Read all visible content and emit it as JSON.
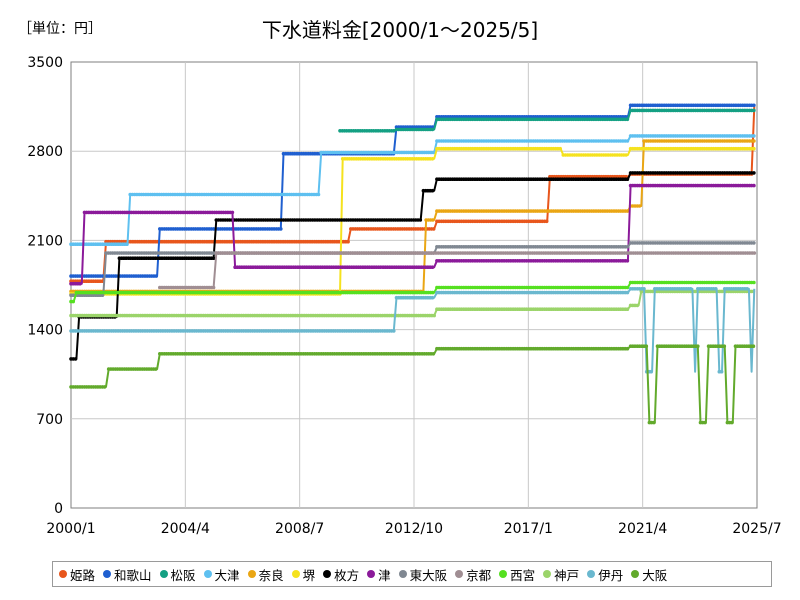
{
  "unit_label": "［単位：円］",
  "chart_data": {
    "type": "line",
    "title": "下水道料金[2000/1～2025/5]",
    "xlabel": "",
    "ylabel": "",
    "xlim": [
      2000.0,
      2025.5
    ],
    "ylim": [
      0,
      3500
    ],
    "yticks": [
      0,
      700,
      1400,
      2100,
      2800,
      3500
    ],
    "xticks": [
      {
        "label": "2000/1",
        "x": 2000.0
      },
      {
        "label": "2004/4",
        "x": 2004.25
      },
      {
        "label": "2008/7",
        "x": 2008.5
      },
      {
        "label": "2012/10",
        "x": 2012.75
      },
      {
        "label": "2017/1",
        "x": 2017.0
      },
      {
        "label": "2021/4",
        "x": 2021.25
      },
      {
        "label": "2025/7",
        "x": 2025.5
      }
    ],
    "grid": true,
    "legend": "bottom",
    "series": [
      {
        "name": "姫路",
        "color": "#e8561c",
        "points": [
          [
            2000.0,
            1780
          ],
          [
            2001.2,
            1780
          ],
          [
            2001.3,
            2090
          ],
          [
            2010.3,
            2090
          ],
          [
            2010.4,
            2190
          ],
          [
            2013.5,
            2190
          ],
          [
            2013.6,
            2250
          ],
          [
            2017.7,
            2250
          ],
          [
            2017.8,
            2600
          ],
          [
            2020.7,
            2600
          ],
          [
            2020.8,
            2620
          ],
          [
            2025.3,
            2620
          ],
          [
            2025.4,
            3150
          ]
        ]
      },
      {
        "name": "和歌山",
        "color": "#1f5fd0",
        "points": [
          [
            2000.0,
            1820
          ],
          [
            2003.2,
            1820
          ],
          [
            2003.3,
            2190
          ],
          [
            2007.8,
            2190
          ],
          [
            2007.9,
            2780
          ],
          [
            2012.0,
            2780
          ],
          [
            2012.1,
            2990
          ],
          [
            2013.5,
            2990
          ],
          [
            2013.6,
            3070
          ],
          [
            2020.7,
            3070
          ],
          [
            2020.8,
            3160
          ],
          [
            2025.4,
            3160
          ]
        ]
      },
      {
        "name": "松阪",
        "color": "#14a083",
        "points": [
          [
            2010.0,
            2960
          ],
          [
            2012.0,
            2960
          ],
          [
            2012.1,
            2970
          ],
          [
            2013.5,
            2970
          ],
          [
            2013.6,
            3050
          ],
          [
            2020.7,
            3050
          ],
          [
            2020.8,
            3120
          ],
          [
            2025.4,
            3120
          ]
        ]
      },
      {
        "name": "大津",
        "color": "#5ec0f0",
        "points": [
          [
            2000.0,
            2070
          ],
          [
            2002.1,
            2070
          ],
          [
            2002.2,
            2460
          ],
          [
            2009.2,
            2460
          ],
          [
            2009.3,
            2790
          ],
          [
            2013.5,
            2790
          ],
          [
            2013.6,
            2880
          ],
          [
            2020.7,
            2880
          ],
          [
            2020.8,
            2920
          ],
          [
            2025.4,
            2920
          ]
        ]
      },
      {
        "name": "奈良",
        "color": "#eaa614",
        "points": [
          [
            2000.0,
            1700
          ],
          [
            2013.1,
            1700
          ],
          [
            2013.2,
            2260
          ],
          [
            2013.5,
            2260
          ],
          [
            2013.6,
            2330
          ],
          [
            2020.7,
            2330
          ],
          [
            2020.8,
            2370
          ],
          [
            2021.2,
            2370
          ],
          [
            2021.3,
            2880
          ],
          [
            2025.4,
            2880
          ]
        ]
      },
      {
        "name": "堺",
        "color": "#f5e21e",
        "points": [
          [
            2000.0,
            1680
          ],
          [
            2010.0,
            1680
          ],
          [
            2010.1,
            2740
          ],
          [
            2013.5,
            2740
          ],
          [
            2013.6,
            2820
          ],
          [
            2018.2,
            2820
          ],
          [
            2018.3,
            2770
          ],
          [
            2020.7,
            2770
          ],
          [
            2020.8,
            2820
          ],
          [
            2025.4,
            2820
          ]
        ]
      },
      {
        "name": "枚方",
        "color": "#000000",
        "points": [
          [
            2000.0,
            1170
          ],
          [
            2000.2,
            1170
          ],
          [
            2000.3,
            1500
          ],
          [
            2001.7,
            1500
          ],
          [
            2001.8,
            1960
          ],
          [
            2005.3,
            1960
          ],
          [
            2005.4,
            2260
          ],
          [
            2013.0,
            2260
          ],
          [
            2013.1,
            2490
          ],
          [
            2013.5,
            2490
          ],
          [
            2013.6,
            2580
          ],
          [
            2020.7,
            2580
          ],
          [
            2020.8,
            2630
          ],
          [
            2025.4,
            2630
          ]
        ]
      },
      {
        "name": "津",
        "color": "#8b1a9a",
        "points": [
          [
            2000.0,
            1760
          ],
          [
            2000.4,
            1760
          ],
          [
            2000.5,
            2320
          ],
          [
            2006.0,
            2320
          ],
          [
            2006.1,
            1890
          ],
          [
            2013.5,
            1890
          ],
          [
            2013.6,
            1940
          ],
          [
            2020.7,
            1940
          ],
          [
            2020.8,
            2530
          ],
          [
            2025.4,
            2530
          ]
        ]
      },
      {
        "name": "東大阪",
        "color": "#808892",
        "points": [
          [
            2000.0,
            1670
          ],
          [
            2001.2,
            1670
          ],
          [
            2001.3,
            2000
          ],
          [
            2013.5,
            2000
          ],
          [
            2013.6,
            2050
          ],
          [
            2020.7,
            2050
          ],
          [
            2020.8,
            2080
          ],
          [
            2025.4,
            2080
          ]
        ]
      },
      {
        "name": "京都",
        "color": "#a08e93",
        "points": [
          [
            2003.3,
            1730
          ],
          [
            2005.3,
            1730
          ],
          [
            2005.4,
            2000
          ],
          [
            2025.4,
            2000
          ]
        ]
      },
      {
        "name": "西宮",
        "color": "#55e020",
        "points": [
          [
            2000.0,
            1620
          ],
          [
            2000.1,
            1620
          ],
          [
            2000.2,
            1690
          ],
          [
            2013.5,
            1690
          ],
          [
            2013.6,
            1730
          ],
          [
            2020.7,
            1730
          ],
          [
            2020.8,
            1770
          ],
          [
            2025.4,
            1770
          ]
        ]
      },
      {
        "name": "神戸",
        "color": "#9bd46a",
        "points": [
          [
            2000.0,
            1510
          ],
          [
            2013.5,
            1510
          ],
          [
            2013.6,
            1560
          ],
          [
            2020.7,
            1560
          ],
          [
            2020.8,
            1590
          ],
          [
            2021.1,
            1590
          ],
          [
            2021.2,
            1700
          ],
          [
            2025.4,
            1700
          ]
        ]
      },
      {
        "name": "伊丹",
        "color": "#6ab8cf",
        "points": [
          [
            2000.0,
            1390
          ],
          [
            2012.0,
            1390
          ],
          [
            2012.1,
            1650
          ],
          [
            2013.5,
            1650
          ],
          [
            2013.6,
            1690
          ],
          [
            2020.7,
            1690
          ],
          [
            2020.8,
            1720
          ],
          [
            2021.3,
            1720
          ],
          [
            2021.4,
            1070
          ],
          [
            2021.6,
            1070
          ],
          [
            2021.7,
            1720
          ],
          [
            2023.1,
            1720
          ],
          [
            2023.2,
            1070
          ],
          [
            2023.3,
            1720
          ],
          [
            2024.0,
            1720
          ],
          [
            2024.1,
            1070
          ],
          [
            2024.2,
            1070
          ],
          [
            2024.3,
            1720
          ],
          [
            2025.2,
            1720
          ],
          [
            2025.3,
            1070
          ],
          [
            2025.4,
            1720
          ]
        ]
      },
      {
        "name": "大阪",
        "color": "#62aa2c",
        "points": [
          [
            2000.0,
            950
          ],
          [
            2001.3,
            950
          ],
          [
            2001.4,
            1090
          ],
          [
            2003.2,
            1090
          ],
          [
            2003.3,
            1210
          ],
          [
            2013.5,
            1210
          ],
          [
            2013.6,
            1250
          ],
          [
            2020.7,
            1250
          ],
          [
            2020.8,
            1270
          ],
          [
            2021.4,
            1270
          ],
          [
            2021.5,
            670
          ],
          [
            2021.7,
            670
          ],
          [
            2021.8,
            1270
          ],
          [
            2023.3,
            1270
          ],
          [
            2023.4,
            670
          ],
          [
            2023.6,
            670
          ],
          [
            2023.7,
            1270
          ],
          [
            2024.3,
            1270
          ],
          [
            2024.4,
            670
          ],
          [
            2024.6,
            670
          ],
          [
            2024.7,
            1270
          ],
          [
            2025.4,
            1270
          ]
        ]
      }
    ]
  }
}
